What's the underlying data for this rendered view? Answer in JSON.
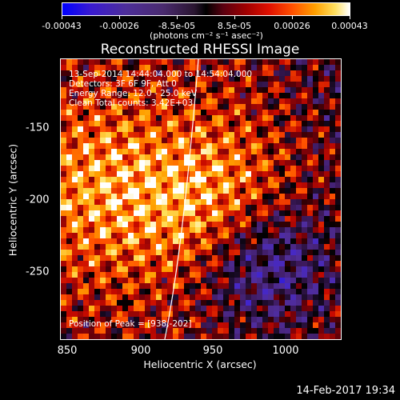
{
  "colorbar": {
    "ticks": [
      "-0.00043",
      "-0.00026",
      "-8.5e-05",
      "8.5e-05",
      "0.00026",
      "0.00043"
    ],
    "unit": "(photons cm⁻² s⁻¹ asec⁻²)"
  },
  "title": "Reconstructed RHESSI Image",
  "annotations": {
    "time_range": "13-Sep-2014 14:44:04.000 to 14:54:04.000",
    "detectors": "Detectors: 3F 6F 9F, Att 0",
    "energy": "Energy Range: 12.0 - 25.0 keV",
    "clean": "Clean     Total counts: 3.42E+03",
    "peak": "Position of Peak = [938,-202]"
  },
  "axes": {
    "x_ticks": [
      "850",
      "900",
      "950",
      "1000"
    ],
    "y_ticks": [
      "-150",
      "-200",
      "-250"
    ],
    "xlabel": "Heliocentric X (arcsec)",
    "ylabel": "Heliocentric Y (arcsec)"
  },
  "timestamp": "14-Feb-2017 19:34"
}
